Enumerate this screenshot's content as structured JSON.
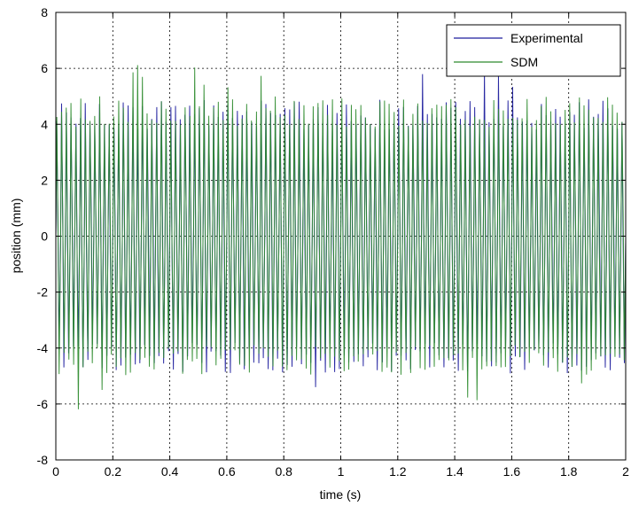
{
  "chart_data": {
    "type": "line",
    "xlabel": "time (s)",
    "ylabel": "position (mm)",
    "xlim": [
      0,
      2
    ],
    "ylim": [
      -8,
      8
    ],
    "x_ticks": [
      0,
      0.2,
      0.4,
      0.6,
      0.8,
      1,
      1.2,
      1.4,
      1.6,
      1.8,
      2
    ],
    "x_tick_labels": [
      "0",
      "0.2",
      "0.4",
      "0.6",
      "0.8",
      "1",
      "1.2",
      "1.4",
      "1.6",
      "1.8",
      "2"
    ],
    "y_ticks": [
      -8,
      -6,
      -4,
      -2,
      0,
      2,
      4,
      6,
      8
    ],
    "y_tick_labels": [
      "-8",
      "-6",
      "-4",
      "-2",
      "0",
      "2",
      "4",
      "6",
      "8"
    ],
    "grid": true,
    "grid_style": "dotted",
    "legend_position": "top-right",
    "series": [
      {
        "name": "Experimental",
        "color": "#1f1f9e",
        "signal": {
          "frequency_hz": 60,
          "amplitude_mm": 4.3,
          "amplitude_min_mm": 3.8,
          "amplitude_max_mm": 5.9
        }
      },
      {
        "name": "SDM",
        "color": "#2e8b2e",
        "signal": {
          "frequency_hz": 60,
          "amplitude_mm": 4.4,
          "amplitude_min_mm": 3.9,
          "amplitude_max_mm": 6.3
        }
      }
    ]
  }
}
